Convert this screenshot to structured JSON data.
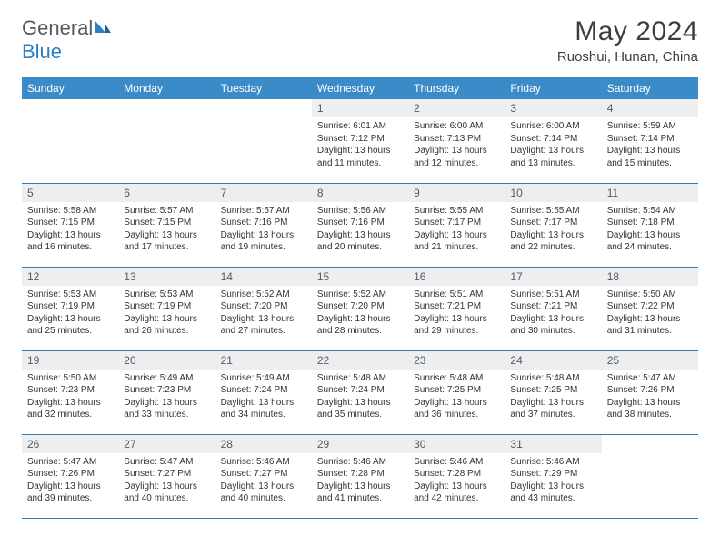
{
  "brand": {
    "part1": "General",
    "part2": "Blue"
  },
  "title": "May 2024",
  "location": "Ruoshui, Hunan, China",
  "colors": {
    "header_bg": "#3b8bc9",
    "header_text": "#ffffff",
    "daynum_bg": "#eceef0",
    "divider": "#3b77a8",
    "brand_gray": "#555a60",
    "brand_blue": "#2b7fc3"
  },
  "weekdays": [
    "Sunday",
    "Monday",
    "Tuesday",
    "Wednesday",
    "Thursday",
    "Friday",
    "Saturday"
  ],
  "weeks": [
    [
      {
        "empty": true
      },
      {
        "empty": true
      },
      {
        "empty": true
      },
      {
        "n": "1",
        "sr": "Sunrise: 6:01 AM",
        "ss": "Sunset: 7:12 PM",
        "d1": "Daylight: 13 hours",
        "d2": "and 11 minutes."
      },
      {
        "n": "2",
        "sr": "Sunrise: 6:00 AM",
        "ss": "Sunset: 7:13 PM",
        "d1": "Daylight: 13 hours",
        "d2": "and 12 minutes."
      },
      {
        "n": "3",
        "sr": "Sunrise: 6:00 AM",
        "ss": "Sunset: 7:14 PM",
        "d1": "Daylight: 13 hours",
        "d2": "and 13 minutes."
      },
      {
        "n": "4",
        "sr": "Sunrise: 5:59 AM",
        "ss": "Sunset: 7:14 PM",
        "d1": "Daylight: 13 hours",
        "d2": "and 15 minutes."
      }
    ],
    [
      {
        "n": "5",
        "sr": "Sunrise: 5:58 AM",
        "ss": "Sunset: 7:15 PM",
        "d1": "Daylight: 13 hours",
        "d2": "and 16 minutes."
      },
      {
        "n": "6",
        "sr": "Sunrise: 5:57 AM",
        "ss": "Sunset: 7:15 PM",
        "d1": "Daylight: 13 hours",
        "d2": "and 17 minutes."
      },
      {
        "n": "7",
        "sr": "Sunrise: 5:57 AM",
        "ss": "Sunset: 7:16 PM",
        "d1": "Daylight: 13 hours",
        "d2": "and 19 minutes."
      },
      {
        "n": "8",
        "sr": "Sunrise: 5:56 AM",
        "ss": "Sunset: 7:16 PM",
        "d1": "Daylight: 13 hours",
        "d2": "and 20 minutes."
      },
      {
        "n": "9",
        "sr": "Sunrise: 5:55 AM",
        "ss": "Sunset: 7:17 PM",
        "d1": "Daylight: 13 hours",
        "d2": "and 21 minutes."
      },
      {
        "n": "10",
        "sr": "Sunrise: 5:55 AM",
        "ss": "Sunset: 7:17 PM",
        "d1": "Daylight: 13 hours",
        "d2": "and 22 minutes."
      },
      {
        "n": "11",
        "sr": "Sunrise: 5:54 AM",
        "ss": "Sunset: 7:18 PM",
        "d1": "Daylight: 13 hours",
        "d2": "and 24 minutes."
      }
    ],
    [
      {
        "n": "12",
        "sr": "Sunrise: 5:53 AM",
        "ss": "Sunset: 7:19 PM",
        "d1": "Daylight: 13 hours",
        "d2": "and 25 minutes."
      },
      {
        "n": "13",
        "sr": "Sunrise: 5:53 AM",
        "ss": "Sunset: 7:19 PM",
        "d1": "Daylight: 13 hours",
        "d2": "and 26 minutes."
      },
      {
        "n": "14",
        "sr": "Sunrise: 5:52 AM",
        "ss": "Sunset: 7:20 PM",
        "d1": "Daylight: 13 hours",
        "d2": "and 27 minutes."
      },
      {
        "n": "15",
        "sr": "Sunrise: 5:52 AM",
        "ss": "Sunset: 7:20 PM",
        "d1": "Daylight: 13 hours",
        "d2": "and 28 minutes."
      },
      {
        "n": "16",
        "sr": "Sunrise: 5:51 AM",
        "ss": "Sunset: 7:21 PM",
        "d1": "Daylight: 13 hours",
        "d2": "and 29 minutes."
      },
      {
        "n": "17",
        "sr": "Sunrise: 5:51 AM",
        "ss": "Sunset: 7:21 PM",
        "d1": "Daylight: 13 hours",
        "d2": "and 30 minutes."
      },
      {
        "n": "18",
        "sr": "Sunrise: 5:50 AM",
        "ss": "Sunset: 7:22 PM",
        "d1": "Daylight: 13 hours",
        "d2": "and 31 minutes."
      }
    ],
    [
      {
        "n": "19",
        "sr": "Sunrise: 5:50 AM",
        "ss": "Sunset: 7:23 PM",
        "d1": "Daylight: 13 hours",
        "d2": "and 32 minutes."
      },
      {
        "n": "20",
        "sr": "Sunrise: 5:49 AM",
        "ss": "Sunset: 7:23 PM",
        "d1": "Daylight: 13 hours",
        "d2": "and 33 minutes."
      },
      {
        "n": "21",
        "sr": "Sunrise: 5:49 AM",
        "ss": "Sunset: 7:24 PM",
        "d1": "Daylight: 13 hours",
        "d2": "and 34 minutes."
      },
      {
        "n": "22",
        "sr": "Sunrise: 5:48 AM",
        "ss": "Sunset: 7:24 PM",
        "d1": "Daylight: 13 hours",
        "d2": "and 35 minutes."
      },
      {
        "n": "23",
        "sr": "Sunrise: 5:48 AM",
        "ss": "Sunset: 7:25 PM",
        "d1": "Daylight: 13 hours",
        "d2": "and 36 minutes."
      },
      {
        "n": "24",
        "sr": "Sunrise: 5:48 AM",
        "ss": "Sunset: 7:25 PM",
        "d1": "Daylight: 13 hours",
        "d2": "and 37 minutes."
      },
      {
        "n": "25",
        "sr": "Sunrise: 5:47 AM",
        "ss": "Sunset: 7:26 PM",
        "d1": "Daylight: 13 hours",
        "d2": "and 38 minutes."
      }
    ],
    [
      {
        "n": "26",
        "sr": "Sunrise: 5:47 AM",
        "ss": "Sunset: 7:26 PM",
        "d1": "Daylight: 13 hours",
        "d2": "and 39 minutes."
      },
      {
        "n": "27",
        "sr": "Sunrise: 5:47 AM",
        "ss": "Sunset: 7:27 PM",
        "d1": "Daylight: 13 hours",
        "d2": "and 40 minutes."
      },
      {
        "n": "28",
        "sr": "Sunrise: 5:46 AM",
        "ss": "Sunset: 7:27 PM",
        "d1": "Daylight: 13 hours",
        "d2": "and 40 minutes."
      },
      {
        "n": "29",
        "sr": "Sunrise: 5:46 AM",
        "ss": "Sunset: 7:28 PM",
        "d1": "Daylight: 13 hours",
        "d2": "and 41 minutes."
      },
      {
        "n": "30",
        "sr": "Sunrise: 5:46 AM",
        "ss": "Sunset: 7:28 PM",
        "d1": "Daylight: 13 hours",
        "d2": "and 42 minutes."
      },
      {
        "n": "31",
        "sr": "Sunrise: 5:46 AM",
        "ss": "Sunset: 7:29 PM",
        "d1": "Daylight: 13 hours",
        "d2": "and 43 minutes."
      },
      {
        "empty": true
      }
    ]
  ]
}
